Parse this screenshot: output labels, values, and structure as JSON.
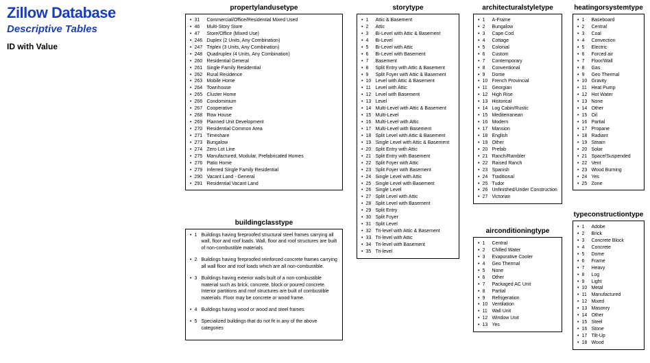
{
  "header": {
    "title": "Zillow Database",
    "subtitle": "Descriptive Tables",
    "idval": "ID with Value"
  },
  "propertylandusetype": {
    "title": "propertylandusetype",
    "items": [
      {
        "id": "31",
        "v": "Commercial/Office/Residential Mixed Used"
      },
      {
        "id": "46",
        "v": "Multi-Story Store"
      },
      {
        "id": "47",
        "v": "Store/Office (Mixed Use)"
      },
      {
        "id": "246",
        "v": "Duplex (2 Units, Any Combination)"
      },
      {
        "id": "247",
        "v": "Triplex (3 Units, Any Combination)"
      },
      {
        "id": "248",
        "v": "Quadruplex (4 Units, Any Combination)"
      },
      {
        "id": "260",
        "v": "Residential General"
      },
      {
        "id": "261",
        "v": "Single Family Residential"
      },
      {
        "id": "262",
        "v": "Rural Residence"
      },
      {
        "id": "263",
        "v": "Mobile Home"
      },
      {
        "id": "264",
        "v": "Townhouse"
      },
      {
        "id": "265",
        "v": "Cluster Home"
      },
      {
        "id": "266",
        "v": "Condominium"
      },
      {
        "id": "267",
        "v": "Cooperative"
      },
      {
        "id": "268",
        "v": "Row House"
      },
      {
        "id": "269",
        "v": "Planned Unit Development"
      },
      {
        "id": "270",
        "v": "Residential Common Area"
      },
      {
        "id": "271",
        "v": "Timeshare"
      },
      {
        "id": "273",
        "v": "Bungalow"
      },
      {
        "id": "274",
        "v": "Zero Lot Line"
      },
      {
        "id": "275",
        "v": "Manufactured, Modular, Prefabricated Homes"
      },
      {
        "id": "276",
        "v": "Patio Home"
      },
      {
        "id": "279",
        "v": "Inferred Single Family Residential"
      },
      {
        "id": "290",
        "v": "Vacant Land - General"
      },
      {
        "id": "291",
        "v": "Residential Vacant Land"
      }
    ]
  },
  "buildingclasstype": {
    "title": "buildingclasstype",
    "items": [
      {
        "id": "1",
        "v": "Buildings having fireproofed structural steel frames carrying all wall, floor and roof loads. Wall, floor and roof structures are built of non-combustible materials."
      },
      {
        "id": "2",
        "v": "Buildings having fireproofed reinforced concrete frames carrying all wall floor and roof loads which are all non-combustible."
      },
      {
        "id": "3",
        "v": "Buildings having exterior walls built of a non-combustible material such as brick, concrete, block or poured concrete. Interior partitions and roof structures are built of combustible materials. Floor may be concrete or wood frame."
      },
      {
        "id": "4",
        "v": "Buildings having wood or wood and steel frames"
      },
      {
        "id": "5",
        "v": "Specialized buildings that do not fit in any of the above categories"
      }
    ]
  },
  "storytype": {
    "title": "storytype",
    "items": [
      {
        "id": "1",
        "v": "Attic & Basement"
      },
      {
        "id": "2",
        "v": "Attic"
      },
      {
        "id": "3",
        "v": "Bi-Level with Attic & Basement"
      },
      {
        "id": "4",
        "v": "Bi-Level"
      },
      {
        "id": "5",
        "v": "Bi-Level with Attic"
      },
      {
        "id": "6",
        "v": "Bi-Level with Basement"
      },
      {
        "id": "7",
        "v": "Basement"
      },
      {
        "id": "8",
        "v": "Split Entry with Attic & Basement"
      },
      {
        "id": "9",
        "v": "Split Foyer with Attic & Basement"
      },
      {
        "id": "10",
        "v": "Level with Attic & Basement"
      },
      {
        "id": "11",
        "v": "Level with Attic"
      },
      {
        "id": "12",
        "v": "Level with Basement"
      },
      {
        "id": "13",
        "v": "Level"
      },
      {
        "id": "14",
        "v": "Multi-Level with Attic & Basement"
      },
      {
        "id": "15",
        "v": "Multi-Level"
      },
      {
        "id": "16",
        "v": "Multi-Level with Attic"
      },
      {
        "id": "17",
        "v": "Multi-Level with Basement"
      },
      {
        "id": "18",
        "v": "Split Level with Attic & Basement"
      },
      {
        "id": "19",
        "v": "Single Level with Attic & Basement"
      },
      {
        "id": "20",
        "v": "Split Entry with Attic"
      },
      {
        "id": "21",
        "v": "Split Entry with Basement"
      },
      {
        "id": "22",
        "v": "Split Foyer with Attic"
      },
      {
        "id": "23",
        "v": "Split Foyer with Basement"
      },
      {
        "id": "24",
        "v": "Single Level with Attic"
      },
      {
        "id": "25",
        "v": "Single Level with Basement"
      },
      {
        "id": "26",
        "v": "Single Level"
      },
      {
        "id": "27",
        "v": "Split Level with Attic"
      },
      {
        "id": "28",
        "v": "Split Level with Basement"
      },
      {
        "id": "29",
        "v": "Split Entry"
      },
      {
        "id": "30",
        "v": "Split Foyer"
      },
      {
        "id": "31",
        "v": "Split Level"
      },
      {
        "id": "32",
        "v": "Tri-level with Attic & Basement"
      },
      {
        "id": "33",
        "v": "Tri-level with Attic"
      },
      {
        "id": "34",
        "v": "Tri-level with Basement"
      },
      {
        "id": "35",
        "v": "Tri-level"
      }
    ]
  },
  "architecturalstyletype": {
    "title": "architecturalstyletype",
    "items": [
      {
        "id": "1",
        "v": "A-Frame"
      },
      {
        "id": "2",
        "v": "Bungalow"
      },
      {
        "id": "3",
        "v": "Cape Cod"
      },
      {
        "id": "4",
        "v": "Cottage"
      },
      {
        "id": "5",
        "v": "Colonial"
      },
      {
        "id": "6",
        "v": "Custom"
      },
      {
        "id": "7",
        "v": "Contemporary"
      },
      {
        "id": "8",
        "v": "Conventional"
      },
      {
        "id": "9",
        "v": "Dome"
      },
      {
        "id": "10",
        "v": "French Provincial"
      },
      {
        "id": "11",
        "v": "Georgian"
      },
      {
        "id": "12",
        "v": "High Rise"
      },
      {
        "id": "13",
        "v": "Historical"
      },
      {
        "id": "14",
        "v": "Log Cabin/Rustic"
      },
      {
        "id": "15",
        "v": "Mediterranean"
      },
      {
        "id": "16",
        "v": "Modern"
      },
      {
        "id": "17",
        "v": "Mansion"
      },
      {
        "id": "18",
        "v": "English"
      },
      {
        "id": "19",
        "v": "Other"
      },
      {
        "id": "20",
        "v": "Prefab"
      },
      {
        "id": "21",
        "v": "Ranch/Rambler"
      },
      {
        "id": "22",
        "v": "Raised Ranch"
      },
      {
        "id": "23",
        "v": "Spanish"
      },
      {
        "id": "24",
        "v": "Traditional"
      },
      {
        "id": "25",
        "v": "Tudor"
      },
      {
        "id": "26",
        "v": "Unfinished/Under Construction"
      },
      {
        "id": "27",
        "v": "Victorian"
      }
    ]
  },
  "airconditioningtype": {
    "title": "airconditioningtype",
    "items": [
      {
        "id": "1",
        "v": "Central"
      },
      {
        "id": "2",
        "v": "Chilled Water"
      },
      {
        "id": "3",
        "v": "Evaporative Cooler"
      },
      {
        "id": "4",
        "v": "Geo Thermal"
      },
      {
        "id": "5",
        "v": "None"
      },
      {
        "id": "6",
        "v": "Other"
      },
      {
        "id": "7",
        "v": "Packaged AC Unit"
      },
      {
        "id": "8",
        "v": "Partial"
      },
      {
        "id": "9",
        "v": "Refrigeration"
      },
      {
        "id": "10",
        "v": "Ventilation"
      },
      {
        "id": "11",
        "v": "Wall Unit"
      },
      {
        "id": "12",
        "v": "Window Unit"
      },
      {
        "id": "13",
        "v": "Yes"
      }
    ]
  },
  "heatingorsystemtype": {
    "title": "heatingorsystemtype",
    "items": [
      {
        "id": "1",
        "v": "Baseboard"
      },
      {
        "id": "2",
        "v": "Central"
      },
      {
        "id": "3",
        "v": "Coal"
      },
      {
        "id": "4",
        "v": "Convection"
      },
      {
        "id": "5",
        "v": "Electric"
      },
      {
        "id": "6",
        "v": "Forced air"
      },
      {
        "id": "7",
        "v": "Floor/Wall"
      },
      {
        "id": "8",
        "v": "Gas"
      },
      {
        "id": "9",
        "v": "Geo Thermal"
      },
      {
        "id": "10",
        "v": "Gravity"
      },
      {
        "id": "11",
        "v": "Heat Pump"
      },
      {
        "id": "12",
        "v": "Hot Water"
      },
      {
        "id": "13",
        "v": "None"
      },
      {
        "id": "14",
        "v": "Other"
      },
      {
        "id": "15",
        "v": "Oil"
      },
      {
        "id": "16",
        "v": "Partial"
      },
      {
        "id": "17",
        "v": "Propane"
      },
      {
        "id": "18",
        "v": "Radiant"
      },
      {
        "id": "19",
        "v": "Steam"
      },
      {
        "id": "20",
        "v": "Solar"
      },
      {
        "id": "21",
        "v": "Space/Suspended"
      },
      {
        "id": "22",
        "v": "Vent"
      },
      {
        "id": "23",
        "v": "Wood Burning"
      },
      {
        "id": "24",
        "v": "Yes"
      },
      {
        "id": "25",
        "v": "Zone"
      }
    ]
  },
  "typeconstructiontype": {
    "title": "typeconstructiontype",
    "items": [
      {
        "id": "1",
        "v": "Adobe"
      },
      {
        "id": "2",
        "v": "Brick"
      },
      {
        "id": "3",
        "v": "Concrete Block"
      },
      {
        "id": "4",
        "v": "Concrete"
      },
      {
        "id": "5",
        "v": "Dome"
      },
      {
        "id": "6",
        "v": "Frame"
      },
      {
        "id": "7",
        "v": "Heavy"
      },
      {
        "id": "8",
        "v": "Log"
      },
      {
        "id": "9",
        "v": "Light"
      },
      {
        "id": "10",
        "v": "Metal"
      },
      {
        "id": "11",
        "v": "Manufactured"
      },
      {
        "id": "12",
        "v": "Mixed"
      },
      {
        "id": "13",
        "v": "Masonry"
      },
      {
        "id": "14",
        "v": "Other"
      },
      {
        "id": "15",
        "v": "Steel"
      },
      {
        "id": "16",
        "v": "Stone"
      },
      {
        "id": "17",
        "v": "Tilt-Up"
      },
      {
        "id": "18",
        "v": "Wood"
      }
    ]
  }
}
